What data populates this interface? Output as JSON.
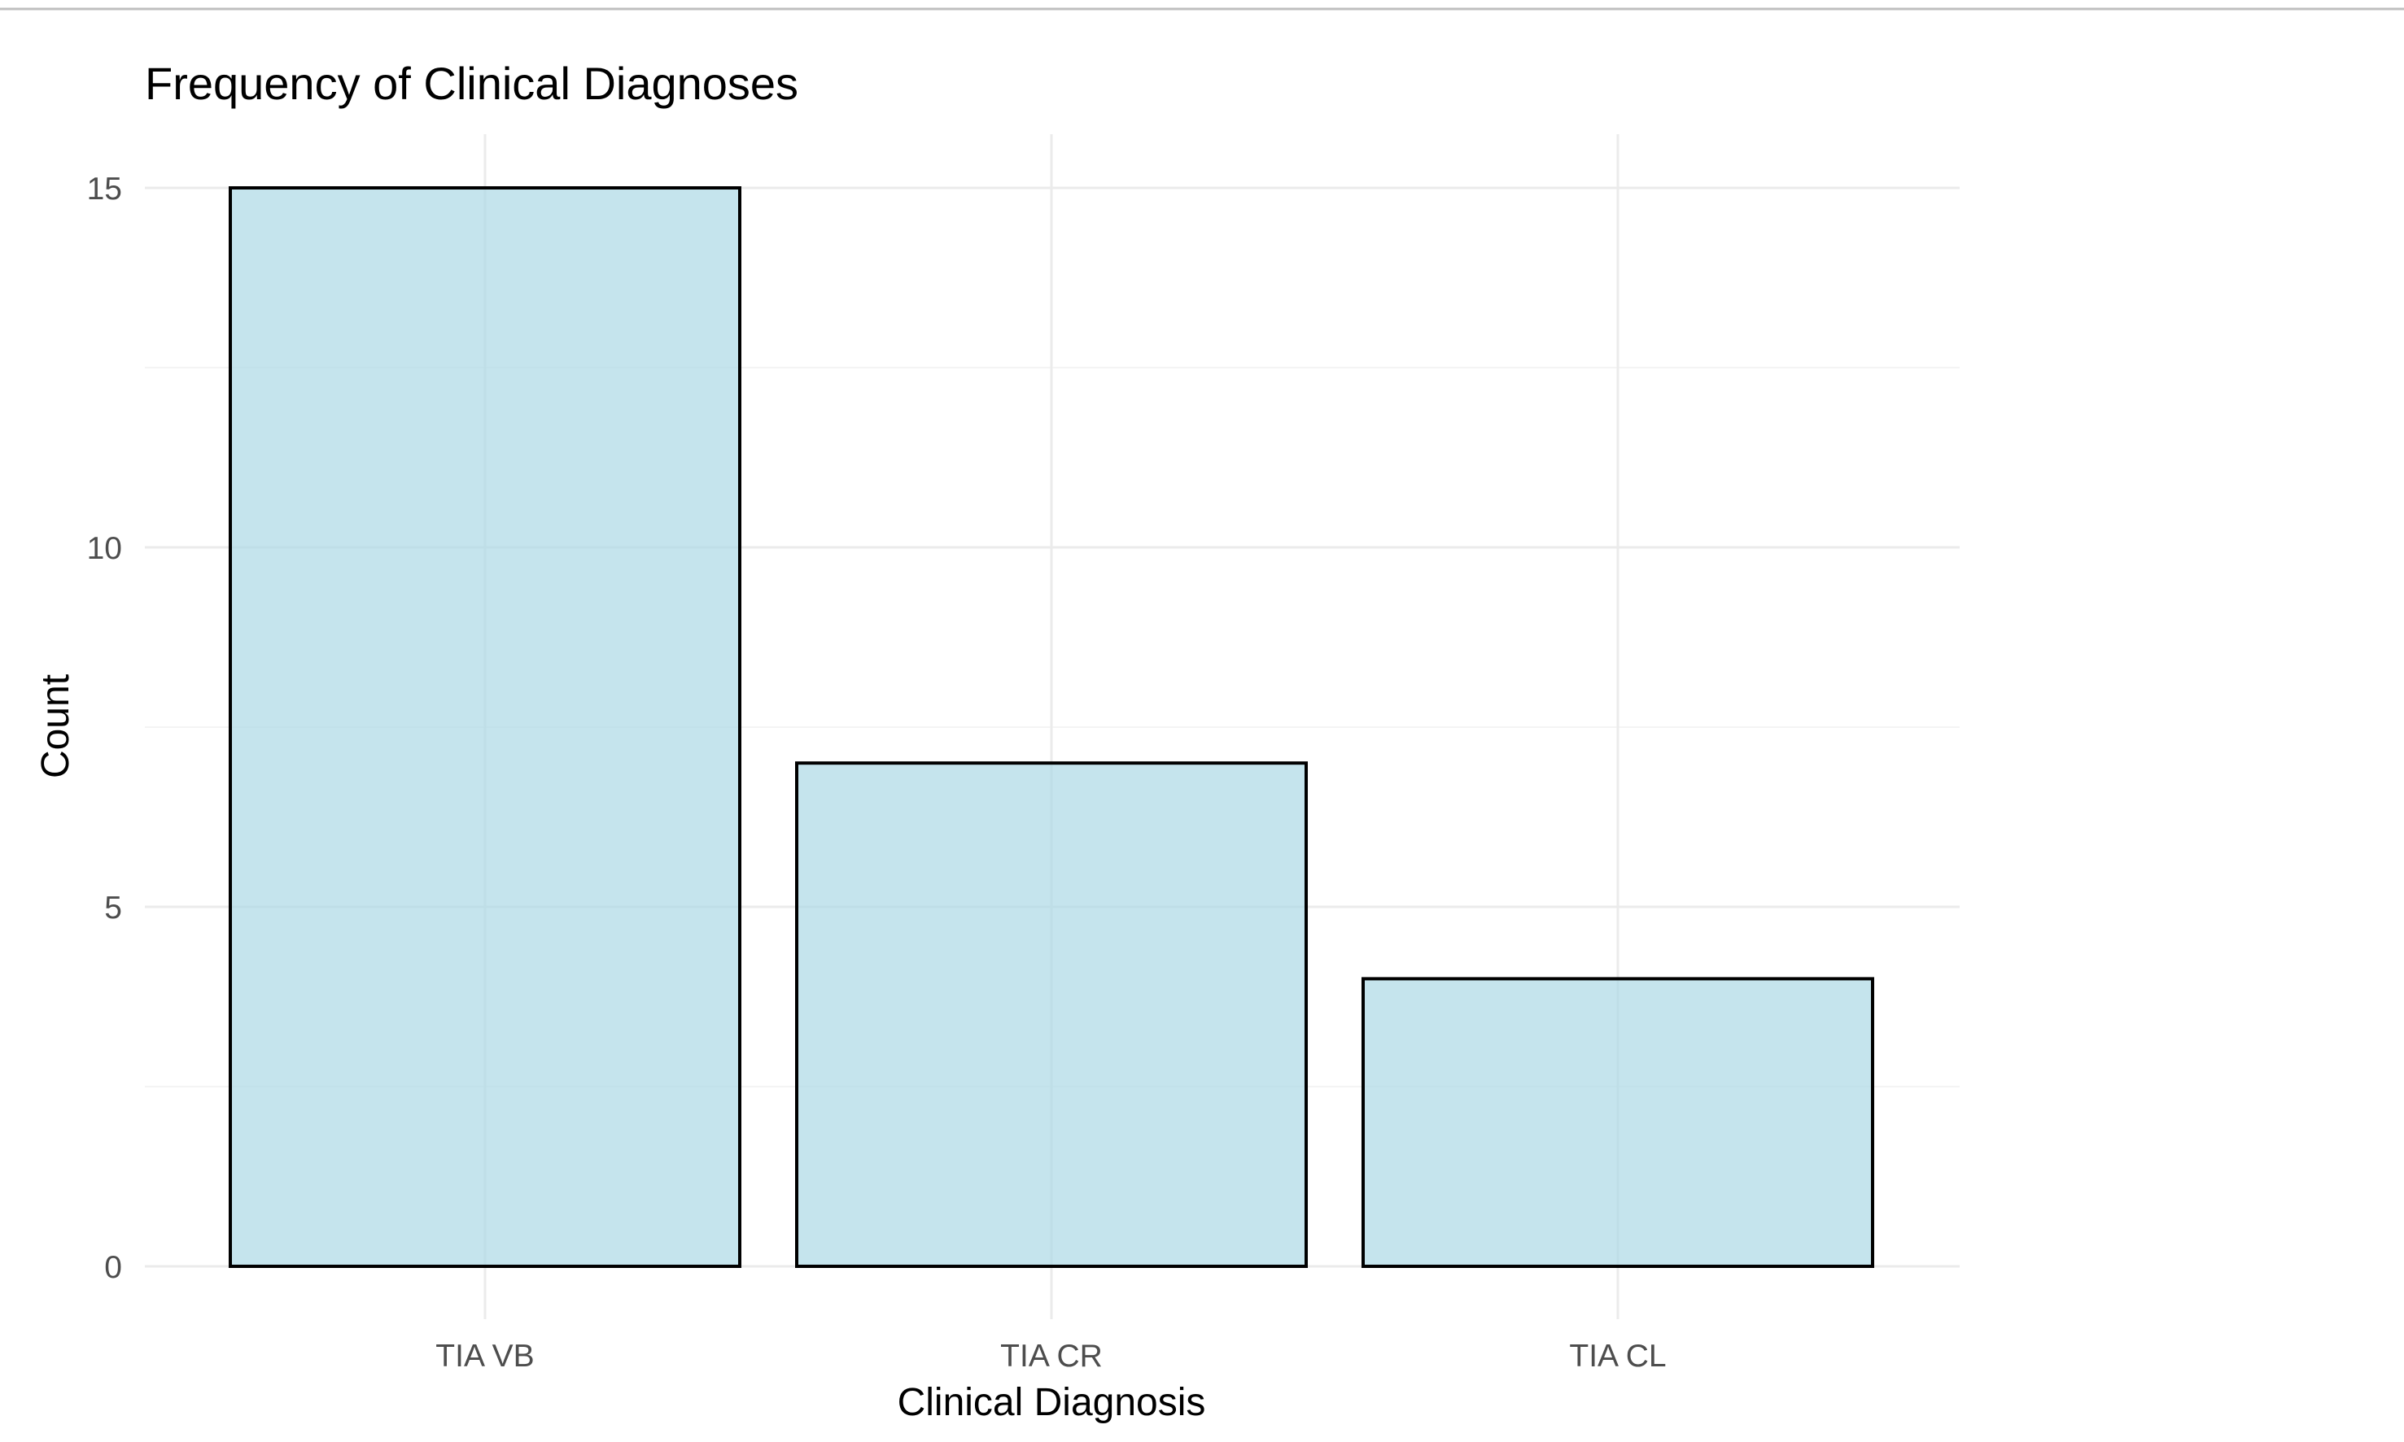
{
  "chart_data": {
    "type": "bar",
    "title": "Frequency of Clinical Diagnoses",
    "xlabel": "Clinical Diagnosis",
    "ylabel": "Count",
    "categories": [
      "TIA VB",
      "TIA CR",
      "TIA CL"
    ],
    "values": [
      15,
      7,
      4
    ],
    "ylim": [
      0,
      15
    ],
    "yticks": [
      0,
      5,
      10,
      15
    ],
    "ytick_labels": [
      "0",
      "5",
      "10",
      "15"
    ],
    "grid": true,
    "legend": "none",
    "colors": {
      "bar_fill": "#add8e6",
      "bar_stroke": "#000000",
      "grid_major": "#ebebeb",
      "grid_minor": "#f4f4f4",
      "top_rule": "#bfbfbf"
    }
  }
}
